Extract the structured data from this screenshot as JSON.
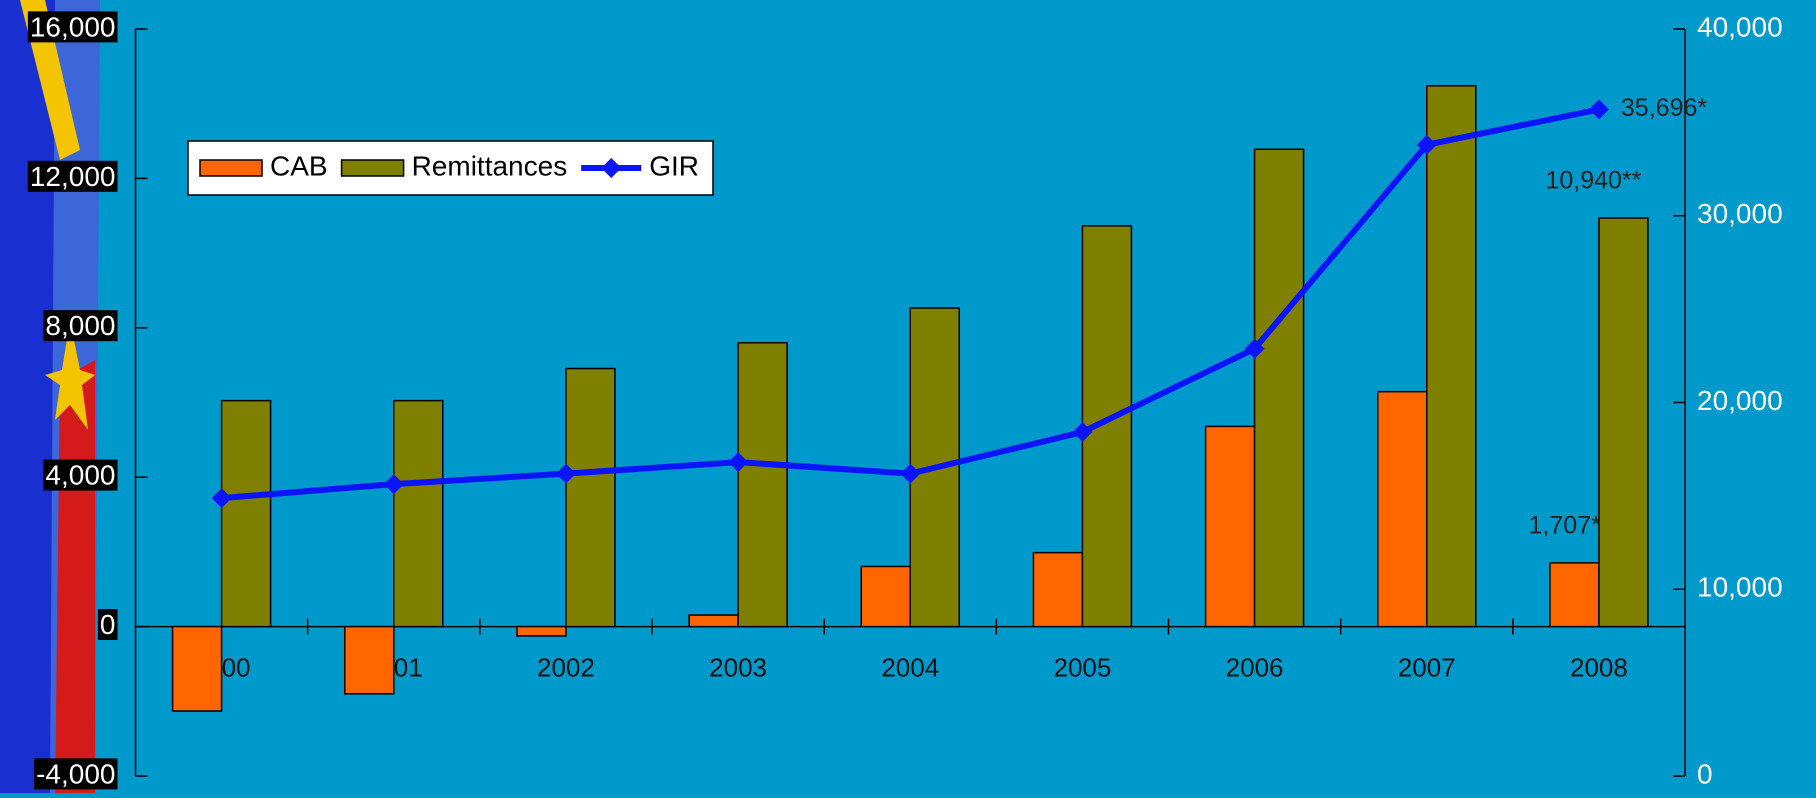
{
  "chart_data": {
    "type": "bar",
    "categories": [
      "2000",
      "2001",
      "2002",
      "2003",
      "2004",
      "2005",
      "2006",
      "2007",
      "2008"
    ],
    "series": [
      {
        "name": "CAB",
        "color": "#ff6600",
        "values": [
          -2260,
          -1800,
          -250,
          310,
          1610,
          1980,
          5360,
          6290,
          1707
        ],
        "value_labels": [
          null,
          null,
          null,
          null,
          null,
          null,
          null,
          null,
          "1,707***"
        ]
      },
      {
        "name": "Remittances",
        "color": "#808000",
        "values": [
          6050,
          6050,
          6910,
          7600,
          8530,
          10730,
          12780,
          14480,
          10940
        ],
        "value_labels": [
          null,
          null,
          null,
          null,
          null,
          null,
          null,
          null,
          "10,940**"
        ]
      },
      {
        "name": "GIR",
        "type": "line",
        "axis": "y2",
        "color": "#0a14ff",
        "values": [
          14880,
          15630,
          16190,
          16810,
          16190,
          18420,
          22880,
          33800,
          35696
        ],
        "value_labels": [
          null,
          null,
          null,
          null,
          null,
          null,
          null,
          null,
          "35,696*"
        ]
      }
    ],
    "ylim": [
      -4000,
      16000
    ],
    "yticks": [
      {
        "value": -4000,
        "label": "-4,000"
      },
      0,
      {
        "value": 4000,
        "label": "4,000"
      },
      {
        "value": 8000,
        "label": "8,000"
      },
      {
        "value": 12000,
        "label": "12,000"
      },
      {
        "value": 16000,
        "label": "16,000"
      }
    ],
    "y2lim": [
      0,
      40000
    ],
    "y2ticks": [
      0,
      {
        "value": 10000,
        "label": "10,000"
      },
      {
        "value": 20000,
        "label": "20,000"
      },
      {
        "value": 30000,
        "label": "30,000"
      },
      {
        "value": 40000,
        "label": "40,000"
      }
    ],
    "grid": false,
    "legend": "upper left"
  }
}
